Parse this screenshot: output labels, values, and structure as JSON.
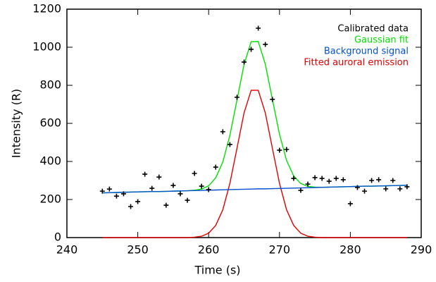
{
  "chart_data": {
    "type": "line",
    "x_label": "Time (s)",
    "y_label": "Intensity (R)",
    "x": [
      245,
      246,
      247,
      248,
      249,
      250,
      251,
      252,
      253,
      254,
      255,
      256,
      257,
      258,
      259,
      260,
      261,
      262,
      263,
      264,
      265,
      266,
      267,
      268,
      269,
      270,
      271,
      272,
      273,
      274,
      275,
      276,
      277,
      278,
      279,
      280,
      281,
      282,
      283,
      284,
      285,
      286,
      287,
      288
    ],
    "series": [
      {
        "name": "Calibrated data",
        "color": "#000000",
        "mode": "markers",
        "values": [
          244,
          255,
          218,
          230,
          163,
          189,
          333,
          259,
          318,
          170,
          274,
          230,
          196,
          337,
          270,
          252,
          370,
          556,
          489,
          737,
          922,
          989,
          1100,
          1015,
          726,
          459,
          463,
          311,
          248,
          281,
          315,
          311,
          296,
          311,
          304,
          178,
          263,
          244,
          300,
          304,
          256,
          300,
          256,
          267
        ]
      },
      {
        "name": "Gaussian fit",
        "color": "#00e000",
        "mode": "lines",
        "values": [
          235,
          236,
          237,
          238,
          239,
          240,
          241,
          242,
          242,
          243,
          244,
          245,
          246,
          249,
          255,
          272,
          314,
          397,
          537,
          722,
          909,
          1029,
          1030,
          911,
          726,
          543,
          405,
          324,
          284,
          269,
          265,
          264,
          265,
          266,
          267,
          268,
          269,
          270,
          270,
          271,
          272,
          273,
          274,
          275
        ]
      },
      {
        "name": "Background signal",
        "color": "#0050d0",
        "mode": "lines",
        "values": [
          235,
          236,
          237,
          238,
          239,
          240,
          241,
          242,
          242,
          243,
          244,
          245,
          246,
          247,
          248,
          249,
          250,
          251,
          252,
          253,
          254,
          255,
          256,
          256,
          257,
          258,
          259,
          260,
          261,
          262,
          263,
          264,
          265,
          266,
          267,
          268,
          269,
          270,
          270,
          271,
          272,
          273,
          274,
          275
        ]
      },
      {
        "name": "Fitted auroral emission",
        "color": "#e00000",
        "mode": "lines",
        "values": [
          0,
          0,
          0,
          0,
          0,
          0,
          0,
          0,
          0,
          0,
          0,
          0,
          0,
          2,
          7,
          23,
          64,
          146,
          285,
          469,
          655,
          774,
          774,
          655,
          469,
          285,
          146,
          64,
          23,
          7,
          2,
          0,
          0,
          0,
          0,
          0,
          0,
          0,
          0,
          0,
          0,
          0,
          0,
          0
        ]
      }
    ],
    "xlim": [
      240,
      290
    ],
    "xticks": [
      240,
      250,
      260,
      270,
      280,
      290
    ],
    "ylim": [
      0,
      1200
    ],
    "yticks": [
      0,
      200,
      400,
      600,
      800,
      1000,
      1200
    ],
    "legend": "upper right",
    "grid": false
  }
}
